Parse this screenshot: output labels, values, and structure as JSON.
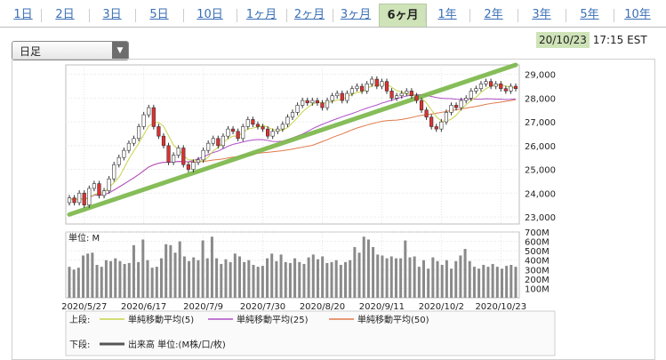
{
  "tabs": [
    {
      "label": "1日",
      "active": false
    },
    {
      "label": "2日",
      "active": false
    },
    {
      "label": "3日",
      "active": false
    },
    {
      "label": "5日",
      "active": false
    },
    {
      "label": "10日",
      "active": false
    },
    {
      "label": "1ヶ月",
      "active": false
    },
    {
      "label": "2ヶ月",
      "active": false
    },
    {
      "label": "3ヶ月",
      "active": false
    },
    {
      "label": "6ヶ月",
      "active": true
    },
    {
      "label": "1年",
      "active": false
    },
    {
      "label": "2年",
      "active": false
    },
    {
      "label": "3年",
      "active": false
    },
    {
      "label": "5年",
      "active": false
    },
    {
      "label": "10年",
      "active": false
    }
  ],
  "period_select": {
    "value": "日足"
  },
  "timestamp": {
    "date": "20/10/23",
    "time": "17:15 EST"
  },
  "colors": {
    "accent_green": "#7ab648",
    "ma5": "#c8d24a",
    "ma25": "#b04fc8",
    "ma50": "#e07a4a",
    "volume": "#8a8a8a",
    "up_candle": "#ffffff",
    "down_candle": "#e03030"
  },
  "chart_data": [
    {
      "type": "candlestick",
      "title": "",
      "x_tick_labels": [
        "2020/5/27",
        "2020/6/17",
        "2020/7/9",
        "2020/7/30",
        "2020/8/20",
        "2020/9/11",
        "2020/10/2",
        "2020/10/23"
      ],
      "y_tick_labels": [
        "29,000",
        "28,000",
        "27,000",
        "26,000",
        "25,000",
        "24,000",
        "23,000"
      ],
      "ylim": [
        22700,
        29400
      ],
      "close_approx": [
        23800,
        23600,
        24000,
        23500,
        24200,
        24400,
        23900,
        24100,
        24600,
        25200,
        25500,
        25800,
        26100,
        26300,
        26800,
        27300,
        27600,
        26800,
        26400,
        26000,
        25300,
        25600,
        25900,
        25200,
        25000,
        25300,
        25400,
        25800,
        26100,
        26300,
        26000,
        26400,
        26700,
        26600,
        26300,
        26800,
        27100,
        26900,
        26800,
        26700,
        26400,
        26600,
        26700,
        26900,
        27200,
        27400,
        27700,
        27900,
        27800,
        27900,
        27800,
        27600,
        27900,
        28100,
        28200,
        27900,
        28200,
        28400,
        28500,
        28300,
        28600,
        28800,
        28500,
        28700,
        28300,
        28000,
        28100,
        28200,
        28300,
        28100,
        27900,
        27500,
        27200,
        26800,
        26700,
        27000,
        27400,
        27700,
        27600,
        27900,
        28000,
        28300,
        28400,
        28600,
        28700,
        28500,
        28600,
        28400,
        28300,
        28500,
        28400
      ],
      "trendline": {
        "from": [
          0,
          23100
        ],
        "to": [
          1,
          29400
        ],
        "color": "#7ab648"
      },
      "moving_averages": [
        {
          "name": "単純移動平均(5)",
          "color": "#c8d24a"
        },
        {
          "name": "単純移動平均(25)",
          "color": "#b04fc8"
        },
        {
          "name": "単純移動平均(50)",
          "color": "#e07a4a"
        }
      ]
    },
    {
      "type": "bar",
      "title": "",
      "label": "単位: M",
      "y_tick_labels": [
        "700M",
        "600M",
        "500M",
        "400M",
        "300M",
        "200M",
        "100M"
      ],
      "ylim": [
        0,
        700
      ],
      "values": [
        330,
        300,
        320,
        450,
        470,
        480,
        350,
        330,
        400,
        390,
        420,
        390,
        360,
        370,
        560,
        380,
        620,
        400,
        320,
        330,
        420,
        570,
        560,
        480,
        600,
        440,
        390,
        430,
        400,
        610,
        420,
        650,
        420,
        360,
        410,
        380,
        470,
        440,
        380,
        400,
        350,
        330,
        340,
        420,
        470,
        390,
        460,
        380,
        370,
        420,
        380,
        360,
        430,
        460,
        410,
        440,
        370,
        380,
        400,
        350,
        380,
        400,
        540,
        480,
        650,
        620,
        540,
        460,
        450,
        420,
        440,
        420,
        420,
        610,
        430,
        440,
        330,
        400,
        310,
        430,
        390,
        350,
        400,
        310,
        390,
        450,
        520,
        390,
        330,
        310,
        350,
        330,
        360,
        330,
        310,
        340,
        350,
        330
      ]
    }
  ],
  "legend": {
    "upper_label": "上段:",
    "lower_label": "下段:",
    "items": [
      {
        "name": "単純移動平均(5)",
        "color": "#c8d24a"
      },
      {
        "name": "単純移動平均(25)",
        "color": "#b04fc8"
      },
      {
        "name": "単純移動平均(50)",
        "color": "#e07a4a"
      }
    ],
    "volume_item": {
      "name": "出来高 単位:(M株/口/枚)",
      "color": "#555555"
    }
  }
}
